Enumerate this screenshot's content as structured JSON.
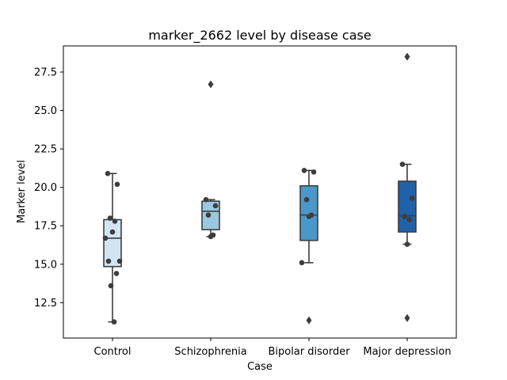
{
  "chart_data": {
    "type": "box",
    "title": "marker_2662 level by disease case",
    "xlabel": "Case",
    "ylabel": "Marker level",
    "ylim": [
      10.2,
      29.2
    ],
    "yticks": [
      "12.5",
      "15.0",
      "17.5",
      "20.0",
      "22.5",
      "25.0",
      "27.5"
    ],
    "categories": [
      "Control",
      "Schizophrenia",
      "Bipolar disorder",
      "Major depression"
    ],
    "colors": [
      "#d3e4f3",
      "#9ac8e0",
      "#4a98c9",
      "#2062a9"
    ],
    "grid": false,
    "groups": [
      {
        "name": "Control",
        "q1": 14.85,
        "median": 16.7,
        "q3": 17.9,
        "whisker_low": 11.25,
        "whisker_high": 20.9,
        "outliers": [],
        "points": [
          20.9,
          20.2,
          18.0,
          17.8,
          17.1,
          16.7,
          15.2,
          15.2,
          14.4,
          13.6,
          11.25
        ]
      },
      {
        "name": "Schizophrenia",
        "q1": 17.25,
        "median": 18.45,
        "q3": 19.1,
        "whisker_low": 16.8,
        "whisker_high": 19.2,
        "outliers": [
          26.7
        ],
        "points": [
          19.2,
          18.8,
          18.2,
          16.9,
          16.8
        ]
      },
      {
        "name": "Bipolar disorder",
        "q1": 16.55,
        "median": 18.2,
        "q3": 20.1,
        "whisker_low": 15.1,
        "whisker_high": 21.1,
        "outliers": [
          11.35
        ],
        "points": [
          21.1,
          21.0,
          19.2,
          18.2,
          18.1,
          15.1
        ]
      },
      {
        "name": "Major depression",
        "q1": 17.1,
        "median": 18.15,
        "q3": 20.4,
        "whisker_low": 16.3,
        "whisker_high": 21.5,
        "outliers": [
          28.5,
          11.5
        ],
        "points": [
          21.5,
          19.3,
          18.1,
          17.9,
          16.3
        ]
      }
    ]
  }
}
